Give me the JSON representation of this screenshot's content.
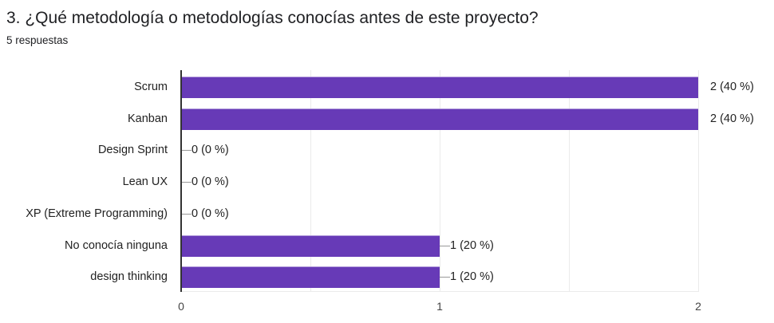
{
  "header": {
    "title": "3. ¿Qué metodología o metodologías conocías antes de este proyecto?",
    "subtitle": "5 respuestas"
  },
  "colors": {
    "bar": "#673ab7",
    "grid": "#ebebeb",
    "axis": "#333333"
  },
  "chart_data": {
    "type": "bar",
    "orientation": "horizontal",
    "title": "3. ¿Qué metodología o metodologías conocías antes de este proyecto?",
    "subtitle": "5 respuestas",
    "categories": [
      "Scrum",
      "Kanban",
      "Design Sprint",
      "Lean UX",
      "XP (Extreme Programming)",
      "No conocía ninguna",
      "design thinking"
    ],
    "values": [
      2,
      2,
      0,
      0,
      0,
      1,
      1
    ],
    "labels": [
      "2 (40 %)",
      "2 (40 %)",
      "0 (0 %)",
      "0 (0 %)",
      "0 (0 %)",
      "1 (20 %)",
      "1 (20 %)"
    ],
    "xlabel": "",
    "ylabel": "",
    "xlim": [
      0,
      2
    ],
    "x_ticks": [
      "0",
      "1",
      "2"
    ],
    "grid": true,
    "legend": "none"
  }
}
